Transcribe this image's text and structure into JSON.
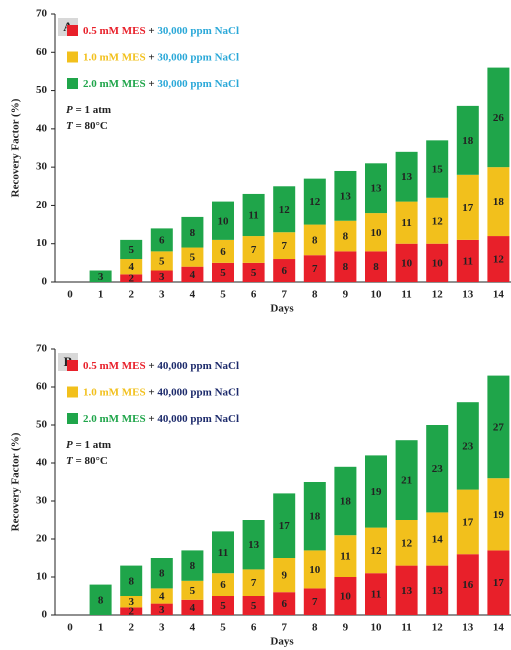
{
  "chart_data": [
    {
      "type": "bar",
      "stacked": true,
      "panel_label": "A",
      "xlabel": "Days",
      "ylabel": "Recovery Factor (%)",
      "categories": [
        "0",
        "1",
        "2",
        "3",
        "4",
        "5",
        "6",
        "7",
        "8",
        "9",
        "10",
        "11",
        "12",
        "13",
        "14"
      ],
      "ylim": [
        0,
        70
      ],
      "yticks": [
        0,
        10,
        20,
        30,
        40,
        50,
        60,
        70
      ],
      "annotations": [
        "P = 1 atm",
        "T = 80°C"
      ],
      "nacl_color": "#2aa8d8",
      "series": [
        {
          "name": "0.5 mM MES + 30,000 ppm NaCl",
          "color": "#e8202a",
          "values": [
            null,
            null,
            2,
            3,
            4,
            5,
            5,
            6,
            7,
            8,
            8,
            10,
            10,
            11,
            12
          ]
        },
        {
          "name": "1.0 mM MES + 30,000 ppm NaCl",
          "color": "#f2c01c",
          "values": [
            null,
            null,
            4,
            5,
            5,
            6,
            7,
            7,
            8,
            8,
            10,
            11,
            12,
            17,
            18
          ]
        },
        {
          "name": "2.0 mM MES + 30,000 ppm NaCl",
          "color": "#1fa54a",
          "values": [
            null,
            3,
            5,
            6,
            8,
            10,
            11,
            12,
            12,
            13,
            13,
            13,
            15,
            18,
            26
          ]
        }
      ]
    },
    {
      "type": "bar",
      "stacked": true,
      "panel_label": "B",
      "xlabel": "Days",
      "ylabel": "Recovery Factor (%)",
      "categories": [
        "0",
        "1",
        "2",
        "3",
        "4",
        "5",
        "6",
        "7",
        "8",
        "9",
        "10",
        "11",
        "12",
        "13",
        "14"
      ],
      "ylim": [
        0,
        70
      ],
      "yticks": [
        0,
        10,
        20,
        30,
        40,
        50,
        60,
        70
      ],
      "annotations": [
        "P = 1 atm",
        "T = 80°C"
      ],
      "nacl_color": "#1c2a6b",
      "series": [
        {
          "name": "0.5 mM MES + 40,000 ppm NaCl",
          "color": "#e8202a",
          "values": [
            null,
            null,
            2,
            3,
            4,
            5,
            5,
            6,
            7,
            10,
            11,
            13,
            13,
            16,
            17
          ]
        },
        {
          "name": "1.0 mM MES + 40,000 ppm NaCl",
          "color": "#f2c01c",
          "values": [
            null,
            null,
            3,
            4,
            5,
            6,
            7,
            9,
            10,
            11,
            12,
            12,
            14,
            17,
            19
          ]
        },
        {
          "name": "2.0 mM MES + 40,000 ppm NaCl",
          "color": "#1fa54a",
          "values": [
            null,
            8,
            8,
            8,
            8,
            11,
            13,
            17,
            18,
            18,
            19,
            21,
            23,
            23,
            27
          ]
        }
      ]
    }
  ]
}
